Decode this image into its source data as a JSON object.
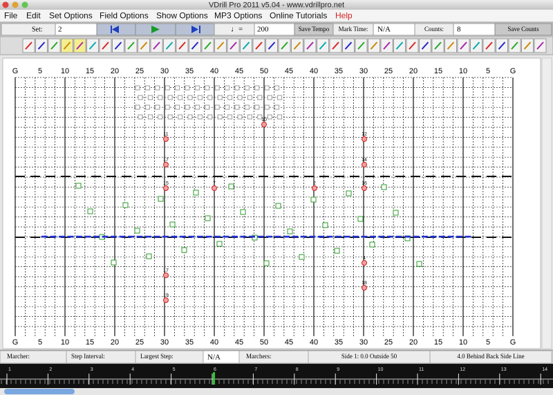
{
  "window": {
    "title": "VDrill Pro 2011 v5.04 - www.vdrillpro.net"
  },
  "menu": [
    "File",
    "Edit",
    "Set Options",
    "Field Options",
    "Show Options",
    "MP3 Options",
    "Online Tutorials",
    "Help"
  ],
  "toolbar": {
    "set_label": "Set:",
    "set_value": "2",
    "tempo_symbol": "♩=",
    "tempo": "200",
    "save_tempo": "Save Tempo",
    "mark_time_label": "Mark Time:",
    "mark_time": "N/A",
    "counts_label": "Counts:",
    "counts": "8",
    "save_counts": "Save Counts"
  },
  "field": {
    "yard_labels": [
      "G",
      "5",
      "10",
      "15",
      "20",
      "25",
      "30",
      "35",
      "40",
      "45",
      "50",
      "45",
      "40",
      "35",
      "30",
      "25",
      "20",
      "15",
      "10",
      "5",
      "G"
    ],
    "marchers": [
      "10",
      "11",
      "12",
      "17",
      "14",
      "15",
      "7",
      "2",
      "16",
      "4",
      "17",
      "18",
      "19"
    ]
  },
  "status": {
    "marcher": "Marcher:",
    "step_interval": "Step Interval:",
    "largest_step": "Largest Step:",
    "largest_step_value": "N/A",
    "marchers": "Marchers:",
    "side": "Side 1: 0.0 Outside 50",
    "depth": "4.0 Behind Back Side Line"
  },
  "timeline": {
    "counts": [
      "1",
      "2",
      "3",
      "4",
      "5",
      "6",
      "7",
      "8",
      "9",
      "10",
      "11",
      "12",
      "13",
      "14"
    ]
  }
}
